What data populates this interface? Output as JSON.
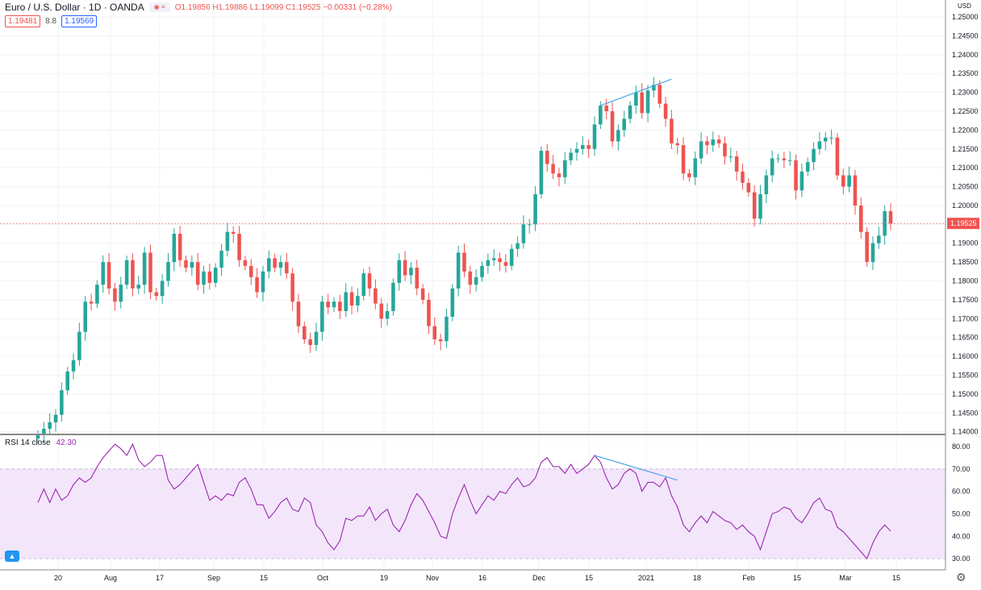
{
  "header": {
    "symbol": "Euro / U.S. Dollar · 1D · OANDA",
    "ohlc": "O1.19856 H1.19886 L1.19099 C1.19525 −0.00331 (−0.28%)",
    "bid": "1.19481",
    "spread": "8.8",
    "ask": "1.19569",
    "currency": "USD"
  },
  "rsi_label": "RSI 14 close",
  "rsi_value": "42.30",
  "last_price_label": "1.19525",
  "colors": {
    "up": "#26a69a",
    "down": "#ef5350",
    "rsi": "#9c27b0",
    "trend": "#4aa3e8",
    "band": "#f3e6fb"
  },
  "chart_data": [
    {
      "type": "candlestick",
      "title": "Euro / U.S. Dollar · 1D · OANDA",
      "ylim": [
        1.1395,
        1.2545
      ],
      "y_ticks": [
        "1.14000",
        "1.14500",
        "1.15000",
        "1.15500",
        "1.16000",
        "1.16500",
        "1.17000",
        "1.17500",
        "1.18000",
        "1.18500",
        "1.19000",
        "1.19500",
        "1.20000",
        "1.20500",
        "1.21000",
        "1.21500",
        "1.22000",
        "1.22500",
        "1.23000",
        "1.23500",
        "1.24000",
        "1.24500",
        "1.25000"
      ],
      "x_ticks": [
        "20",
        "Aug",
        "17",
        "Sep",
        "15",
        "Oct",
        "19",
        "Nov",
        "16",
        "Dec",
        "15",
        "2021",
        "18",
        "Feb",
        "15",
        "Mar",
        "15"
      ],
      "last_price": 1.19525,
      "closes": [
        1.1392,
        1.1408,
        1.1425,
        1.1445,
        1.151,
        1.156,
        1.159,
        1.1665,
        1.1745,
        1.174,
        1.179,
        1.185,
        1.178,
        1.1745,
        1.179,
        1.1855,
        1.178,
        1.179,
        1.1875,
        1.177,
        1.176,
        1.18,
        1.185,
        1.1925,
        1.1855,
        1.1835,
        1.185,
        1.179,
        1.1825,
        1.1795,
        1.1835,
        1.188,
        1.193,
        1.1925,
        1.1855,
        1.184,
        1.181,
        1.177,
        1.1825,
        1.186,
        1.1835,
        1.185,
        1.182,
        1.1745,
        1.168,
        1.1645,
        1.163,
        1.1665,
        1.1745,
        1.173,
        1.1745,
        1.172,
        1.177,
        1.1735,
        1.176,
        1.182,
        1.178,
        1.174,
        1.17,
        1.172,
        1.1795,
        1.1855,
        1.1815,
        1.1835,
        1.178,
        1.175,
        1.168,
        1.1645,
        1.164,
        1.1705,
        1.178,
        1.1875,
        1.1825,
        1.179,
        1.181,
        1.184,
        1.1855,
        1.186,
        1.185,
        1.184,
        1.1885,
        1.19,
        1.195,
        1.195,
        1.203,
        1.2145,
        1.211,
        1.2085,
        1.2075,
        1.212,
        1.214,
        1.215,
        1.216,
        1.215,
        1.2215,
        1.2265,
        1.225,
        1.217,
        1.22,
        1.223,
        1.2265,
        1.23,
        1.2245,
        1.2305,
        1.232,
        1.227,
        1.223,
        1.2165,
        1.216,
        1.2085,
        1.2075,
        1.2125,
        1.217,
        1.216,
        1.2175,
        1.2165,
        1.213,
        1.213,
        1.209,
        1.206,
        1.2035,
        1.1965,
        1.203,
        1.208,
        1.2125,
        1.2125,
        1.212,
        1.212,
        1.204,
        1.209,
        1.2115,
        1.215,
        1.217,
        1.218,
        1.218,
        1.208,
        1.205,
        1.208,
        1.2,
        1.193,
        1.185,
        1.19,
        1.192,
        1.1985,
        1.19525
      ],
      "annotations": [
        "trend line connecting rising highs (Dec–Jan)"
      ]
    },
    {
      "type": "line",
      "title": "RSI 14 close",
      "ylim": [
        25,
        85
      ],
      "y_ticks": [
        "30.00",
        "40.00",
        "50.00",
        "60.00",
        "70.00",
        "80.00"
      ],
      "bands": [
        30,
        70
      ],
      "last_value": 42.3,
      "values": [
        55,
        61,
        55,
        61,
        56,
        58,
        63,
        66,
        64,
        66,
        71,
        75,
        78,
        81,
        79,
        76,
        81,
        74,
        71,
        73,
        76,
        76,
        65,
        61,
        63,
        66,
        69,
        72,
        64,
        56,
        58,
        56,
        59,
        58,
        64,
        66,
        61,
        54,
        54,
        48,
        51,
        55,
        57,
        52,
        51,
        57,
        55,
        45,
        42,
        37,
        34,
        38,
        48,
        47,
        49,
        49,
        53,
        47,
        50,
        52,
        45,
        42,
        47,
        54,
        59,
        56,
        51,
        46,
        40,
        39,
        50,
        57,
        63,
        56,
        50,
        54,
        58,
        56,
        60,
        59,
        63,
        66,
        62,
        63,
        66,
        73,
        75,
        71,
        71,
        68,
        72,
        68,
        70,
        72,
        76,
        73,
        66,
        61,
        63,
        68,
        70,
        68,
        60,
        64,
        64,
        62,
        66,
        58,
        53,
        45,
        42,
        46,
        49,
        46,
        51,
        49,
        47,
        46,
        43,
        45,
        42,
        40,
        34,
        42,
        50,
        51,
        53,
        52,
        48,
        46,
        50,
        55,
        57,
        52,
        51,
        44,
        42,
        39,
        36,
        33,
        30,
        37,
        42,
        45,
        42.3
      ],
      "annotations": [
        "trend line connecting falling RSI highs (divergence)"
      ]
    }
  ]
}
